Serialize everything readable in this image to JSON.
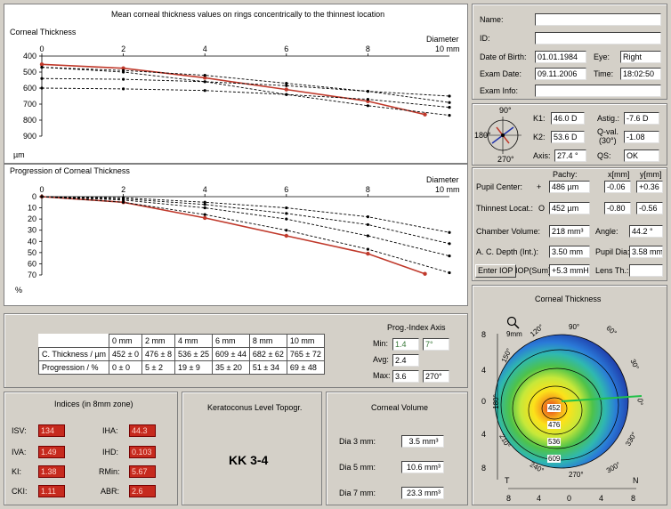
{
  "thickness_chart": {
    "title": "Mean corneal thickness values on rings concentrically to the thinnest location",
    "ylabel": "Corneal Thickness",
    "yunit": "µm",
    "xlabel": "Diameter",
    "xunit": "10  mm",
    "xticks": [
      "0",
      "2",
      "4",
      "6",
      "8"
    ],
    "yticks": [
      "400",
      "500",
      "600",
      "700",
      "800",
      "900"
    ]
  },
  "progression_chart": {
    "title": "Progression of Corneal Thickness",
    "xlabel": "Diameter",
    "xunit": "10  mm",
    "yunit": "%",
    "xticks": [
      "0",
      "2",
      "4",
      "6",
      "8"
    ],
    "yticks": [
      "0",
      "10",
      "20",
      "30",
      "40",
      "50",
      "60",
      "70"
    ]
  },
  "chart_data": [
    {
      "type": "line",
      "title": "Mean corneal thickness values on rings concentrically to the thinnest location",
      "ylabel": "Corneal Thickness µm",
      "xlabel": "Diameter mm",
      "xlim": [
        0,
        10
      ],
      "ylim": [
        400,
        900
      ],
      "y_inverted": true,
      "series": [
        {
          "color": "#c0392b",
          "x": [
            0,
            2,
            4,
            6,
            8,
            9.4
          ],
          "y": [
            452,
            476,
            536,
            609,
            682,
            765
          ]
        },
        {
          "color": "#000000",
          "x": [
            0,
            2,
            4,
            6,
            8,
            10
          ],
          "y": [
            470,
            500,
            560,
            640,
            710,
            770
          ]
        },
        {
          "color": "#000000",
          "x": [
            0,
            2,
            4,
            6,
            8,
            10
          ],
          "y": [
            470,
            490,
            520,
            570,
            620,
            690
          ]
        },
        {
          "color": "#000000",
          "x": [
            0,
            2,
            4,
            6,
            8,
            10
          ],
          "y": [
            540,
            545,
            560,
            585,
            620,
            650
          ]
        },
        {
          "color": "#000000",
          "x": [
            0,
            2,
            4,
            6,
            8,
            10
          ],
          "y": [
            600,
            605,
            615,
            640,
            670,
            720
          ]
        }
      ]
    },
    {
      "type": "line",
      "title": "Progression of Corneal Thickness",
      "ylabel": "%",
      "xlabel": "Diameter mm",
      "xlim": [
        0,
        10
      ],
      "ylim": [
        0,
        70
      ],
      "y_inverted": true,
      "series": [
        {
          "color": "#c0392b",
          "x": [
            0,
            2,
            4,
            6,
            8,
            9.4
          ],
          "y": [
            0,
            5,
            19,
            35,
            51,
            69
          ]
        },
        {
          "color": "#000000",
          "x": [
            0,
            2,
            4,
            6,
            8,
            10
          ],
          "y": [
            0,
            5,
            16,
            30,
            47,
            68
          ]
        },
        {
          "color": "#000000",
          "x": [
            0,
            2,
            4,
            6,
            8,
            10
          ],
          "y": [
            0,
            3,
            10,
            20,
            35,
            53
          ]
        },
        {
          "color": "#000000",
          "x": [
            0,
            2,
            4,
            6,
            8,
            10
          ],
          "y": [
            0,
            2,
            7,
            15,
            25,
            42
          ]
        },
        {
          "color": "#000000",
          "x": [
            0,
            2,
            4,
            6,
            8,
            10
          ],
          "y": [
            0,
            1,
            5,
            10,
            18,
            32
          ]
        }
      ]
    }
  ],
  "table": {
    "headers": [
      "",
      "0 mm",
      "2 mm",
      "4 mm",
      "6 mm",
      "8 mm",
      "10 mm"
    ],
    "rows": [
      [
        "C. Thickness / µm",
        "452 ± 0",
        "476 ± 8",
        "536 ± 25",
        "609 ± 44",
        "682 ± 62",
        "765 ± 72"
      ],
      [
        "Progression / %",
        "0 ± 0",
        "5 ± 2",
        "19 ± 9",
        "35 ± 20",
        "51 ± 34",
        "69 ± 48"
      ]
    ]
  },
  "prog_index": {
    "title": "Prog.-Index Axis",
    "min_label": "Min:",
    "min_value": "1.4",
    "min_axis": "7°",
    "avg_label": "Avg:",
    "avg_value": "2.4",
    "max_label": "Max:",
    "max_value": "3.6",
    "max_axis": "270°"
  },
  "patient": {
    "name_label": "Name:",
    "name_value": "",
    "id_label": "ID:",
    "id_value": "",
    "dob_label": "Date of Birth:",
    "dob_value": "01.01.1984",
    "eye_label": "Eye:",
    "eye_value": "Right",
    "exam_label": "Exam Date:",
    "exam_value": "09.11.2006",
    "time_label": "Time:",
    "time_value": "18:02:50",
    "info_label": "Exam Info:",
    "info_value": ""
  },
  "kerato": {
    "compass": {
      "top": "90°",
      "left": "180°",
      "bottom": "270°"
    },
    "k1_label": "K1:",
    "k1_value": "46.0 D",
    "k2_label": "K2:",
    "k2_value": "53.6 D",
    "axis_label": "Axis:",
    "axis_value": "27.4 °",
    "astig_label": "Astig.:",
    "astig_value": "-7.6 D",
    "qval_label": "Q-val.",
    "qval_sub": "(30°)",
    "qval_value": "-1.08",
    "qs_label": "QS:",
    "qs_value": "OK"
  },
  "pachy": {
    "pachy_header": "Pachy:",
    "x_header": "x[mm]",
    "y_header": "y[mm]",
    "pupil_label": "Pupil Center:",
    "pupil_symbol": "+",
    "pupil_pachy": "486 µm",
    "pupil_x": "-0.06",
    "pupil_y": "+0.36",
    "thin_label": "Thinnest Locat.:",
    "thin_symbol": "O",
    "thin_pachy": "452 µm",
    "thin_x": "-0.80",
    "thin_y": "-0.56",
    "chamber_label": "Chamber Volume:",
    "chamber_value": "218 mm³",
    "angle_label": "Angle:",
    "angle_value": "44.2 °",
    "acd_label": "A. C. Depth (Int.):",
    "acd_value": "3.50 mm",
    "pupil_dia_label": "Pupil Dia:",
    "pupil_dia_value": "3.58 mm",
    "iop_button": "Enter IOP",
    "iop_sum_label": "IOP(Sum)",
    "iop_sum_value": "+5.3 mmHg",
    "lens_label": "Lens Th.:",
    "lens_value": ""
  },
  "map": {
    "title": "Corneal Thickness",
    "scale_label": "9mm",
    "angles": [
      "90°",
      "120°",
      "60°",
      "150°",
      "30°",
      "180°",
      "0°",
      "210°",
      "330°",
      "240°",
      "270°",
      "300°"
    ],
    "axis_left": [
      "8",
      "4",
      "0",
      "4",
      "8"
    ],
    "axis_bottom": [
      "8",
      "4",
      "0",
      "4",
      "8"
    ],
    "corner_t": "T",
    "corner_n": "N",
    "contours": [
      "452",
      "476",
      "536",
      "609"
    ]
  },
  "indices": {
    "title": "Indices (in 8mm zone)",
    "isv_label": "ISV:",
    "isv_value": "134",
    "iva_label": "IVA:",
    "iva_value": "1.49",
    "ki_label": "KI:",
    "ki_value": "1.38",
    "cki_label": "CKI:",
    "cki_value": "1.11",
    "iha_label": "IHA:",
    "iha_value": "44.3",
    "ihd_label": "IHD:",
    "ihd_value": "0.103",
    "rmin_label": "RMin:",
    "rmin_value": "5.67",
    "abr_label": "ABR:",
    "abr_value": "2.6"
  },
  "keratoconus": {
    "title": "Keratoconus Level Topogr.",
    "value": "KK 3-4"
  },
  "volume": {
    "title": "Corneal Volume",
    "d3_label": "Dia 3 mm:",
    "d3_value": "3.5 mm³",
    "d5_label": "Dia 5 mm:",
    "d5_value": "10.6 mm³",
    "d7_label": "Dia 7 mm:",
    "d7_value": "23.3 mm³"
  }
}
